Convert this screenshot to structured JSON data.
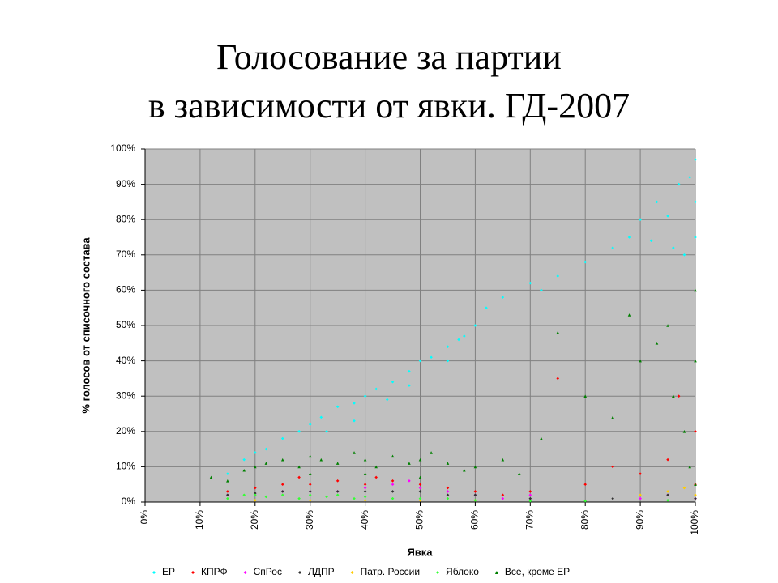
{
  "chart_data": {
    "type": "scatter",
    "title": [
      "Голосование за партии",
      "в зависимости от явки. ГД-2007"
    ],
    "x_label": "Явка",
    "y_label": "% голосов от списочного состава",
    "xlim": [
      0,
      100
    ],
    "ylim": [
      0,
      100
    ],
    "xticks": [
      {
        "value": 0,
        "label": "0%"
      },
      {
        "value": 10,
        "label": "10%"
      },
      {
        "value": 20,
        "label": "20%"
      },
      {
        "value": 30,
        "label": "30%"
      },
      {
        "value": 40,
        "label": "40%"
      },
      {
        "value": 50,
        "label": "50%"
      },
      {
        "value": 60,
        "label": "60%"
      },
      {
        "value": 70,
        "label": "70%"
      },
      {
        "value": 80,
        "label": "80%"
      },
      {
        "value": 90,
        "label": "90%"
      },
      {
        "value": 100,
        "label": "100%"
      }
    ],
    "yticks": [
      {
        "value": 0,
        "label": "0%"
      },
      {
        "value": 10,
        "label": "10%"
      },
      {
        "value": 20,
        "label": "20%"
      },
      {
        "value": 30,
        "label": "30%"
      },
      {
        "value": 40,
        "label": "40%"
      },
      {
        "value": 50,
        "label": "50%"
      },
      {
        "value": 60,
        "label": "60%"
      },
      {
        "value": 70,
        "label": "70%"
      },
      {
        "value": 80,
        "label": "80%"
      },
      {
        "value": 90,
        "label": "90%"
      },
      {
        "value": 100,
        "label": "100%"
      }
    ],
    "grid": true,
    "legend": "bottom",
    "plot_background": "#c0c0c0",
    "series": [
      {
        "name": "ЕР",
        "color": "#00ffff",
        "marker": "diamond",
        "x": [
          15,
          18,
          20,
          22,
          25,
          28,
          30,
          32,
          35,
          38,
          40,
          42,
          45,
          48,
          50,
          52,
          55,
          58,
          60,
          62,
          65,
          70,
          72,
          75,
          80,
          85,
          88,
          90,
          93,
          95,
          97,
          99,
          100,
          100,
          100,
          98,
          96,
          92,
          33,
          38,
          44,
          48,
          55,
          57
        ],
        "values": [
          8,
          12,
          14,
          15,
          18,
          20,
          22,
          24,
          27,
          28,
          30,
          32,
          34,
          37,
          40,
          41,
          44,
          47,
          50,
          55,
          58,
          62,
          60,
          64,
          68,
          72,
          75,
          80,
          85,
          81,
          90,
          92,
          97,
          85,
          75,
          70,
          72,
          74,
          20,
          23,
          29,
          33,
          40,
          46
        ]
      },
      {
        "name": "КПРФ",
        "color": "#ff0000",
        "marker": "diamond",
        "x": [
          15,
          20,
          25,
          30,
          35,
          40,
          45,
          50,
          55,
          60,
          65,
          70,
          75,
          80,
          85,
          90,
          95,
          97,
          100,
          100,
          28,
          42
        ],
        "values": [
          3,
          4,
          5,
          5,
          6,
          5,
          6,
          5,
          4,
          3,
          2,
          3,
          35,
          5,
          10,
          8,
          12,
          30,
          20,
          5,
          7,
          7
        ]
      },
      {
        "name": "СпРос",
        "color": "#ff00ff",
        "marker": "diamond",
        "x": [
          15,
          20,
          25,
          30,
          35,
          40,
          45,
          48,
          50,
          55,
          60,
          65,
          70,
          90,
          95,
          100
        ],
        "values": [
          2,
          2,
          3,
          3,
          3,
          4,
          5,
          6,
          4,
          3,
          2,
          1,
          2,
          1,
          2,
          1
        ]
      },
      {
        "name": "ЛДПР",
        "color": "#333333",
        "marker": "diamond",
        "x": [
          15,
          20,
          25,
          30,
          35,
          40,
          45,
          50,
          55,
          60,
          70,
          85,
          95,
          100
        ],
        "values": [
          2,
          2.5,
          3,
          3,
          3,
          3,
          3,
          3,
          2,
          2,
          1,
          1,
          2,
          1
        ]
      },
      {
        "name": "Патр. России",
        "color": "#ffcc00",
        "marker": "diamond",
        "x": [
          20,
          30,
          40,
          50,
          60,
          90,
          95,
          98,
          100
        ],
        "values": [
          0.5,
          0.5,
          0.5,
          0.5,
          0.5,
          2,
          3,
          4,
          2
        ]
      },
      {
        "name": "Яблоко",
        "color": "#33ff33",
        "marker": "diamond",
        "x": [
          15,
          18,
          20,
          22,
          25,
          28,
          30,
          33,
          35,
          38,
          40,
          45,
          50,
          55,
          60,
          70,
          80,
          95
        ],
        "values": [
          1,
          2,
          2,
          1.5,
          2,
          1,
          2,
          1.5,
          2,
          1,
          1.5,
          1,
          1,
          1,
          0.5,
          0.3,
          0.3,
          0.5
        ]
      },
      {
        "name": "Все, кроме ЕР",
        "color": "#008000",
        "marker": "triangle",
        "x": [
          12,
          15,
          18,
          20,
          22,
          25,
          28,
          30,
          32,
          35,
          38,
          40,
          42,
          45,
          48,
          50,
          52,
          55,
          58,
          60,
          65,
          68,
          72,
          75,
          80,
          85,
          88,
          90,
          93,
          95,
          96,
          98,
          99,
          100,
          100,
          100,
          30,
          40,
          50
        ],
        "values": [
          7,
          6,
          9,
          10,
          11,
          12,
          10,
          13,
          12,
          11,
          14,
          12,
          10,
          13,
          11,
          12,
          14,
          11,
          9,
          10,
          12,
          8,
          18,
          48,
          30,
          24,
          53,
          40,
          45,
          50,
          30,
          20,
          10,
          60,
          40,
          5,
          8,
          8,
          7
        ]
      }
    ]
  }
}
